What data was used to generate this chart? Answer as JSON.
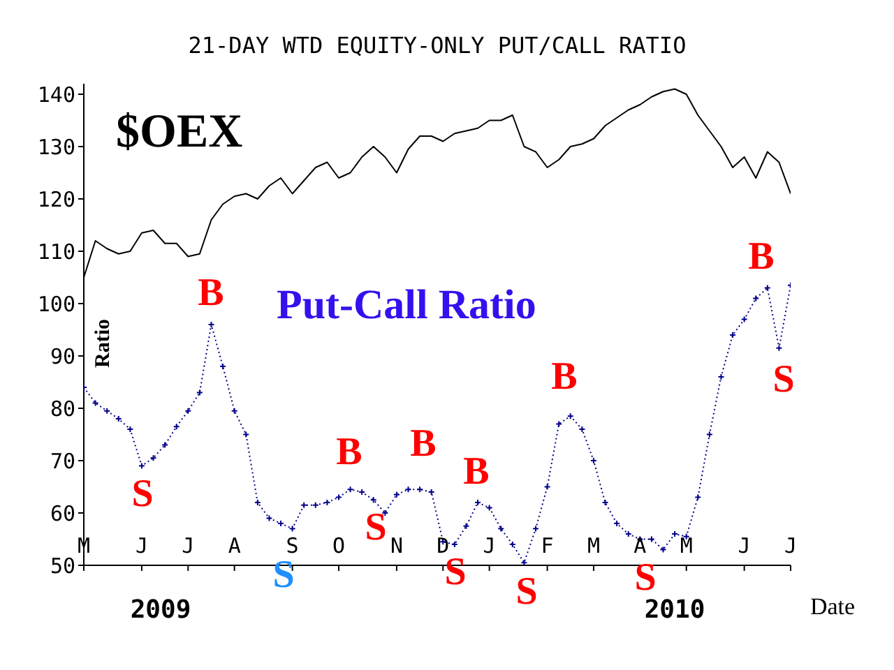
{
  "chart_data": {
    "type": "line",
    "title": "21-DAY WTD EQUITY-ONLY PUT/CALL RATIO",
    "xlabel": "Date",
    "ylabel": "Ratio",
    "ylim": [
      50,
      142
    ],
    "yticks": [
      50,
      60,
      70,
      80,
      90,
      100,
      110,
      120,
      130,
      140
    ],
    "categories": [
      "M",
      null,
      null,
      null,
      null,
      "J",
      null,
      null,
      null,
      "J",
      null,
      null,
      null,
      "A",
      null,
      null,
      null,
      null,
      "S",
      null,
      null,
      null,
      "O",
      null,
      null,
      null,
      null,
      "N",
      null,
      null,
      null,
      "D",
      null,
      null,
      null,
      "J",
      null,
      null,
      null,
      null,
      "F",
      null,
      null,
      null,
      "M",
      null,
      null,
      null,
      "A",
      null,
      null,
      null,
      "M",
      null,
      null,
      null,
      null,
      "J",
      null,
      null,
      null,
      "J"
    ],
    "series": [
      {
        "name": "$OEX",
        "color": "#000000",
        "line_style": "solid",
        "values": [
          105,
          112,
          110.5,
          109.5,
          110,
          113.5,
          114,
          111.5,
          111.5,
          109,
          109.5,
          116,
          119,
          120.5,
          121,
          120,
          122.5,
          124,
          121,
          123.5,
          126,
          127,
          124,
          125,
          128,
          130,
          128,
          125,
          129.5,
          132,
          132,
          131,
          132.5,
          133,
          133.5,
          135,
          135,
          136,
          130,
          129,
          126,
          127.5,
          130,
          130.5,
          131.5,
          134,
          135.5,
          137,
          138,
          139.5,
          140.5,
          141,
          140,
          136,
          133,
          130,
          126,
          128,
          124,
          129,
          127,
          121
        ]
      },
      {
        "name": "Put-Call Ratio",
        "color": "#00008b",
        "line_style": "dotted",
        "marker": "cross",
        "values": [
          84,
          81,
          79.5,
          78,
          76,
          69,
          70.5,
          73,
          76.5,
          79.5,
          83,
          96,
          88,
          79.5,
          75,
          62,
          59,
          58,
          57,
          61.5,
          61.5,
          62,
          63,
          64.5,
          64,
          62.5,
          60,
          63.5,
          64.5,
          64.5,
          64,
          54.5,
          54,
          57.5,
          62,
          61,
          57,
          54,
          50.5,
          57,
          65,
          77,
          78.5,
          76,
          70,
          62,
          58,
          56,
          55,
          55,
          53,
          56,
          55.5,
          63,
          75,
          86,
          94,
          97,
          101,
          103,
          91.5,
          103.5
        ]
      }
    ],
    "annotations": [
      "S",
      "B",
      "S",
      "B",
      "S",
      "B",
      "S",
      "B",
      "S",
      "B",
      "S",
      "B",
      "S",
      "2009",
      "2010"
    ]
  }
}
